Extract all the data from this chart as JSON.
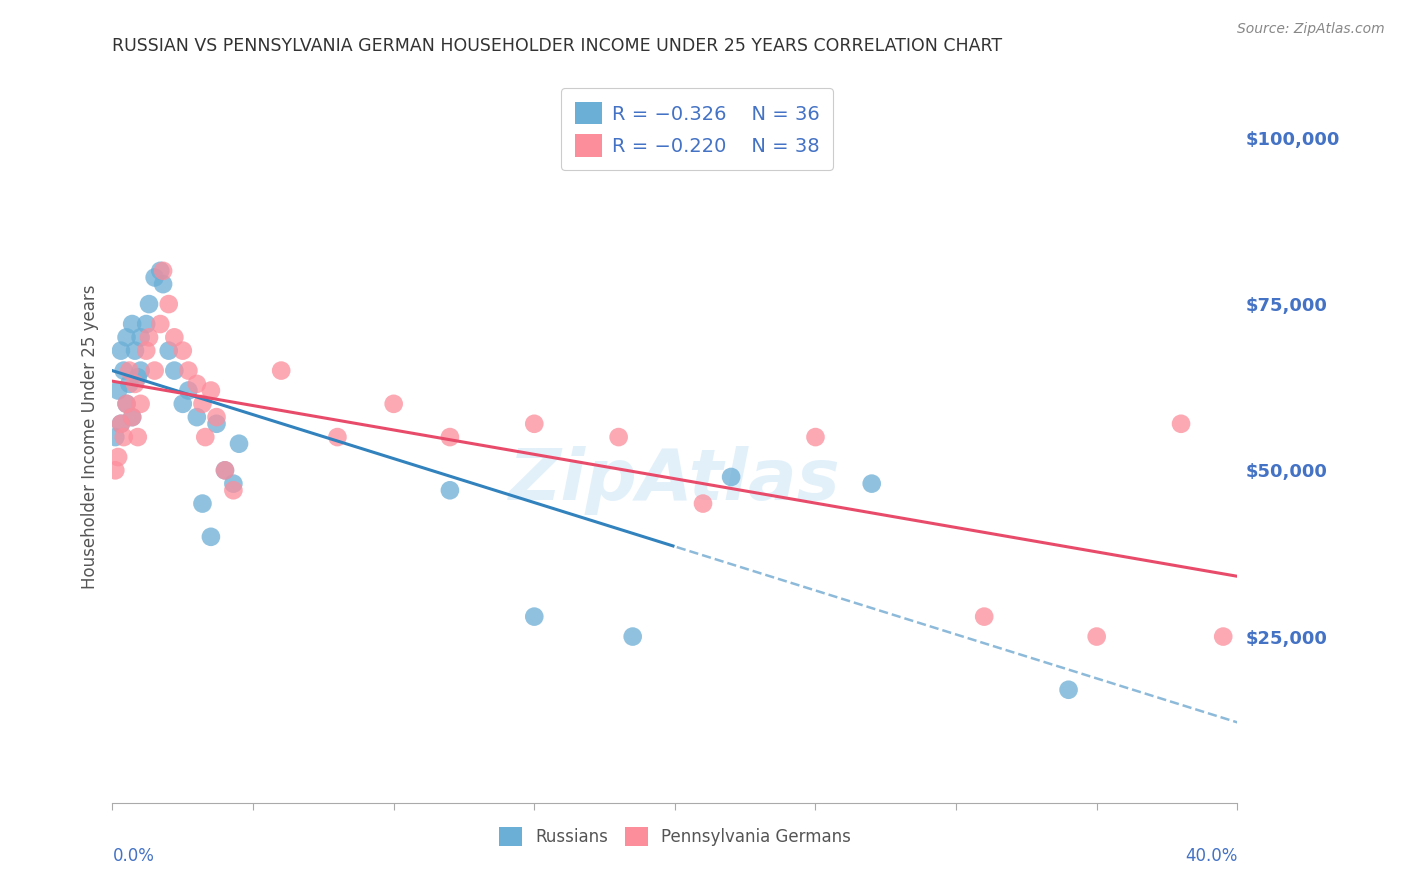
{
  "title": "RUSSIAN VS PENNSYLVANIA GERMAN HOUSEHOLDER INCOME UNDER 25 YEARS CORRELATION CHART",
  "source": "Source: ZipAtlas.com",
  "ylabel": "Householder Income Under 25 years",
  "xlim": [
    0.0,
    0.4
  ],
  "ylim": [
    0,
    110000
  ],
  "yticks": [
    0,
    25000,
    50000,
    75000,
    100000
  ],
  "ytick_labels": [
    "",
    "$25,000",
    "$50,000",
    "$75,000",
    "$100,000"
  ],
  "legend_r_blue": "-0.326",
  "legend_n_blue": "36",
  "legend_r_pink": "-0.220",
  "legend_n_pink": "38",
  "legend_label_blue": "Russians",
  "legend_label_pink": "Pennsylvania Germans",
  "blue_color": "#6baed6",
  "pink_color": "#fc8d9b",
  "blue_line_color": "#3182bd",
  "pink_line_color": "#e84b6a",
  "axis_label_color": "#4472c4",
  "russians_x": [
    0.001,
    0.002,
    0.003,
    0.003,
    0.004,
    0.005,
    0.005,
    0.006,
    0.007,
    0.007,
    0.008,
    0.009,
    0.01,
    0.01,
    0.012,
    0.013,
    0.015,
    0.017,
    0.018,
    0.02,
    0.022,
    0.025,
    0.027,
    0.03,
    0.032,
    0.035,
    0.037,
    0.04,
    0.043,
    0.045,
    0.12,
    0.15,
    0.185,
    0.22,
    0.27,
    0.34
  ],
  "russians_y": [
    55000,
    62000,
    68000,
    57000,
    65000,
    60000,
    70000,
    63000,
    72000,
    58000,
    68000,
    64000,
    65000,
    70000,
    72000,
    75000,
    79000,
    80000,
    78000,
    68000,
    65000,
    60000,
    62000,
    58000,
    45000,
    40000,
    57000,
    50000,
    48000,
    54000,
    47000,
    28000,
    25000,
    49000,
    48000,
    17000
  ],
  "pagermans_x": [
    0.001,
    0.002,
    0.003,
    0.004,
    0.005,
    0.006,
    0.007,
    0.008,
    0.009,
    0.01,
    0.012,
    0.013,
    0.015,
    0.017,
    0.018,
    0.02,
    0.022,
    0.025,
    0.027,
    0.03,
    0.032,
    0.033,
    0.035,
    0.037,
    0.04,
    0.043,
    0.06,
    0.08,
    0.1,
    0.12,
    0.15,
    0.18,
    0.21,
    0.25,
    0.31,
    0.35,
    0.38,
    0.395
  ],
  "pagermans_y": [
    50000,
    52000,
    57000,
    55000,
    60000,
    65000,
    58000,
    63000,
    55000,
    60000,
    68000,
    70000,
    65000,
    72000,
    80000,
    75000,
    70000,
    68000,
    65000,
    63000,
    60000,
    55000,
    62000,
    58000,
    50000,
    47000,
    65000,
    55000,
    60000,
    55000,
    57000,
    55000,
    45000,
    55000,
    28000,
    25000,
    57000,
    25000
  ]
}
